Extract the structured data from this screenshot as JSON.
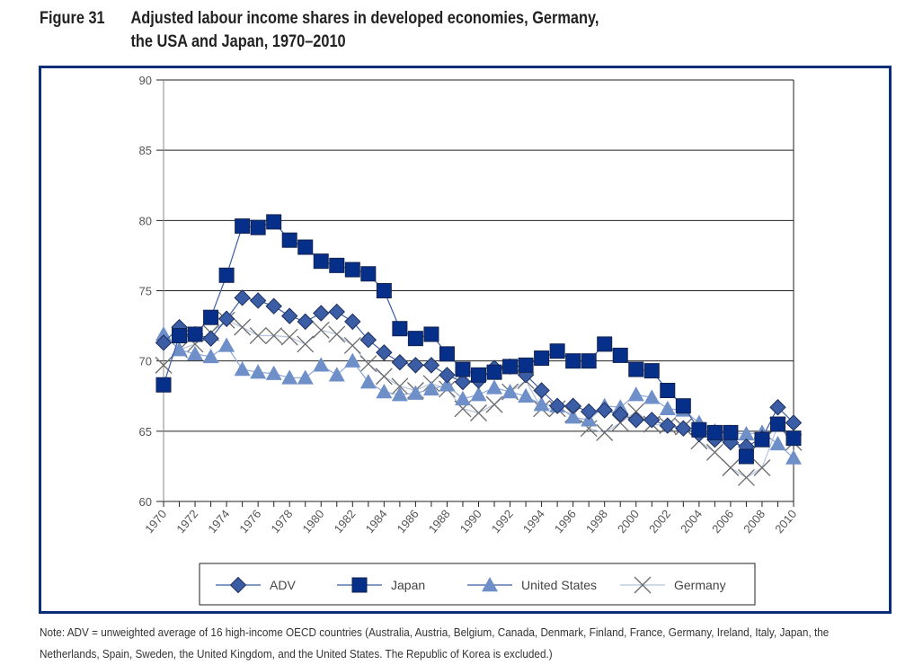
{
  "figure": {
    "number": "Figure 31",
    "title_line1": "Adjusted labour income shares in developed economies, Germany,",
    "title_line2": "the USA and Japan, 1970–2010"
  },
  "note": "Note: ADV = unweighted average of 16 high-income OECD countries (Australia, Austria, Belgium, Canada, Denmark, Finland, France, Germany, Ireland, Italy, Japan, the Netherlands, Spain, Sweden, the United Kingdom, and the United States. The Republic of Korea is excluded.)",
  "colors": {
    "frame": "#0b2e78",
    "adv": "#3a5da5",
    "japan": "#062f8a",
    "us": "#6e8fc8",
    "germany": "#6b6b6b"
  },
  "chart_data": {
    "type": "line",
    "title": "Adjusted labour income shares in developed economies, Germany, the USA and Japan, 1970–2010",
    "xlabel": "",
    "ylabel": "",
    "ylim": [
      60,
      90
    ],
    "xlim": [
      1970,
      2010
    ],
    "yticks": [
      60,
      65,
      70,
      75,
      80,
      85,
      90
    ],
    "xticks": [
      1970,
      1972,
      1974,
      1976,
      1978,
      1980,
      1982,
      1984,
      1986,
      1988,
      1990,
      1992,
      1994,
      1996,
      1998,
      2000,
      2002,
      2004,
      2006,
      2008,
      2010
    ],
    "grid": "horizontal",
    "legend_position": "bottom",
    "x": [
      1970,
      1971,
      1972,
      1973,
      1974,
      1975,
      1976,
      1977,
      1978,
      1979,
      1980,
      1981,
      1982,
      1983,
      1984,
      1985,
      1986,
      1987,
      1988,
      1989,
      1990,
      1991,
      1992,
      1993,
      1994,
      1995,
      1996,
      1997,
      1998,
      1999,
      2000,
      2001,
      2002,
      2003,
      2004,
      2005,
      2006,
      2007,
      2008,
      2009,
      2010
    ],
    "series": [
      {
        "name": "ADV",
        "marker": "diamond",
        "values": [
          71.3,
          72.4,
          71.9,
          71.6,
          73.0,
          74.5,
          74.3,
          73.9,
          73.2,
          72.8,
          73.4,
          73.5,
          72.8,
          71.5,
          70.6,
          69.9,
          69.7,
          69.7,
          69.0,
          68.5,
          68.6,
          69.5,
          69.6,
          69.0,
          67.9,
          66.8,
          66.8,
          66.4,
          66.5,
          66.2,
          65.8,
          65.8,
          65.4,
          65.2,
          64.8,
          64.4,
          64.2,
          63.9,
          64.5,
          66.7,
          65.6
        ]
      },
      {
        "name": "Japan",
        "marker": "square",
        "values": [
          68.3,
          71.8,
          71.9,
          73.1,
          76.1,
          79.6,
          79.5,
          79.9,
          78.6,
          78.1,
          77.1,
          76.8,
          76.5,
          76.2,
          75.0,
          72.3,
          71.6,
          71.9,
          70.5,
          69.4,
          69.0,
          69.2,
          69.6,
          69.7,
          70.2,
          70.7,
          70.0,
          70.0,
          71.2,
          70.4,
          69.4,
          69.3,
          67.9,
          66.8,
          65.1,
          64.9,
          64.9,
          63.2,
          64.4,
          65.5,
          64.5
        ]
      },
      {
        "name": "United States",
        "marker": "triangle",
        "values": [
          71.9,
          70.8,
          70.5,
          70.3,
          71.1,
          69.4,
          69.2,
          69.1,
          68.8,
          68.8,
          69.7,
          69.0,
          70.0,
          68.5,
          67.8,
          67.6,
          67.7,
          68.0,
          68.3,
          67.3,
          67.6,
          68.1,
          67.8,
          67.5,
          66.9,
          66.8,
          66.0,
          65.8,
          66.8,
          66.7,
          67.6,
          67.4,
          66.6,
          66.5,
          65.6,
          65.0,
          64.9,
          64.8,
          64.9,
          64.1,
          63.1
        ]
      },
      {
        "name": "Germany",
        "marker": "x",
        "values": [
          69.7,
          70.8,
          71.2,
          72.0,
          72.9,
          72.4,
          71.8,
          71.8,
          71.7,
          71.2,
          72.2,
          71.9,
          71.1,
          69.8,
          68.9,
          68.2,
          67.9,
          68.4,
          68.0,
          66.6,
          66.3,
          66.9,
          67.8,
          68.6,
          66.6,
          66.6,
          66.2,
          65.2,
          64.9,
          65.6,
          66.4,
          65.5,
          65.4,
          65.3,
          64.3,
          63.5,
          62.4,
          61.7,
          62.4,
          65.4,
          64.2
        ]
      }
    ]
  }
}
